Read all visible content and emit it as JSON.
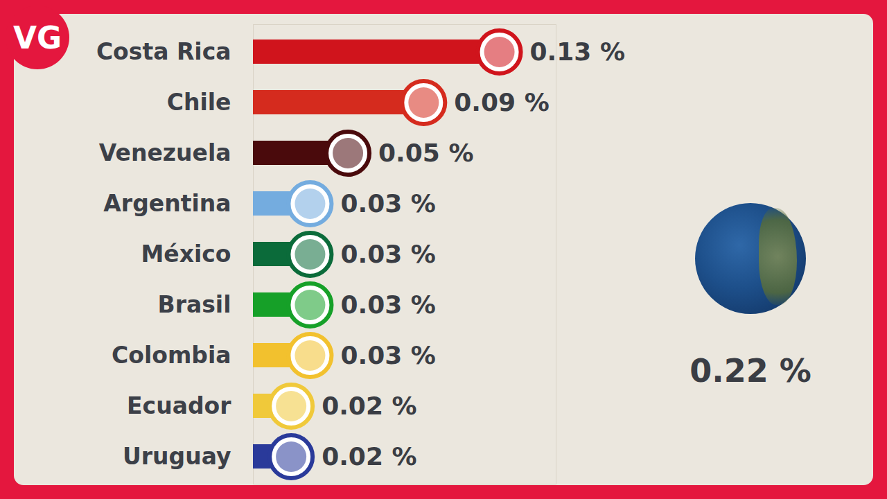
{
  "chart_data": {
    "type": "bar",
    "orientation": "horizontal",
    "categories": [
      "Costa Rica",
      "Chile",
      "Venezuela",
      "Argentina",
      "México",
      "Brasil",
      "Colombia",
      "Ecuador",
      "Uruguay"
    ],
    "values": [
      0.13,
      0.09,
      0.05,
      0.03,
      0.03,
      0.03,
      0.03,
      0.02,
      0.02
    ],
    "value_labels": [
      "0.13 %",
      "0.09 %",
      "0.05 %",
      "0.03 %",
      "0.03 %",
      "0.03 %",
      "0.03 %",
      "0.02 %",
      "0.02 %"
    ],
    "colors": [
      "#d0141c",
      "#d52b1e",
      "#4a0a0c",
      "#74acdf",
      "#0b6b3a",
      "#16a028",
      "#f2c12e",
      "#f0c93a",
      "#2a3a9a"
    ],
    "xlim": [
      0,
      0.16
    ],
    "tick_labels": "y",
    "data_labels": true,
    "annotations": [
      {
        "text": "VG"
      },
      {
        "text": "0.22 %"
      }
    ]
  }
}
